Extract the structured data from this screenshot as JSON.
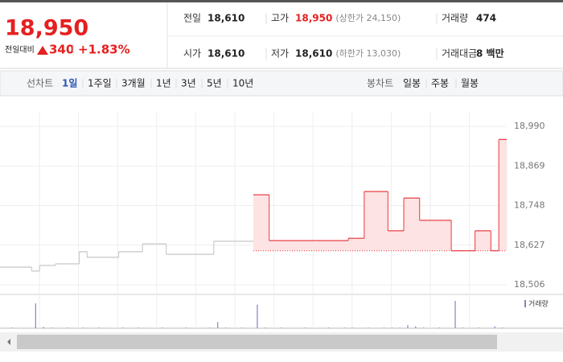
{
  "quote": {
    "price": "18,950",
    "change_label": "전일대비",
    "change": "340",
    "change_pct": "+1.83%"
  },
  "stats": [
    {
      "label": "전일",
      "value": "18,610"
    },
    {
      "label": "고가",
      "value": "18,950",
      "note": "(상한가 24,150)"
    },
    {
      "label": "거래량",
      "value": "474"
    },
    {
      "label": "시가",
      "value": "18,610"
    },
    {
      "label": "저가",
      "value": "18,610",
      "note": "(하한가 13,030)"
    },
    {
      "label": "거래대금",
      "value": "8 백만"
    }
  ],
  "tabs": {
    "line_label": "선차트",
    "line": [
      "1일",
      "1주일",
      "3개월",
      "1년",
      "3년",
      "5년",
      "10년"
    ],
    "candle_label": "봉차트",
    "candle": [
      "일봉",
      "주봉",
      "월봉"
    ]
  },
  "chart_data": {
    "type": "line",
    "ylim": [
      18479,
      19032
    ],
    "yticks": [
      {
        "value": 18506,
        "label": "18,506"
      },
      {
        "value": 18627,
        "label": "18,627"
      },
      {
        "value": 18748,
        "label": "18,748"
      },
      {
        "value": 18869,
        "label": "18,869"
      },
      {
        "value": 18990,
        "label": "18,990"
      }
    ],
    "grid": true,
    "baseline": 18610,
    "series": [
      {
        "color": "#c4c4c4",
        "values": [
          18560,
          18560,
          18560,
          18560,
          18548,
          18565,
          18565,
          18570,
          18570,
          18570,
          18607,
          18590,
          18590,
          18590,
          18590,
          18607,
          18607,
          18607,
          18631,
          18631,
          18631,
          18599,
          18599,
          18599,
          18599,
          18599,
          18599,
          18639,
          18639,
          18639,
          18639,
          18639,
          null,
          null,
          null,
          null,
          null,
          null,
          null,
          null,
          null,
          null,
          null,
          null,
          null,
          null,
          null,
          null,
          null,
          null,
          null,
          null,
          null,
          null,
          null,
          null,
          null,
          null,
          null,
          null,
          null,
          null,
          null,
          null
        ]
      },
      {
        "color": "#e8393f",
        "fill": "#fde3e3",
        "values": [
          null,
          null,
          null,
          null,
          null,
          null,
          null,
          null,
          null,
          null,
          null,
          null,
          null,
          null,
          null,
          null,
          null,
          null,
          null,
          null,
          null,
          null,
          null,
          null,
          null,
          null,
          null,
          null,
          null,
          null,
          null,
          null,
          18781,
          18781,
          18641,
          18641,
          18641,
          18641,
          18641,
          18641,
          18641,
          18641,
          18641,
          18641,
          18648,
          18648,
          18791,
          18791,
          18791,
          18671,
          18671,
          18771,
          18771,
          18703,
          18703,
          18703,
          18703,
          18610,
          18610,
          18610,
          18671,
          18671,
          18610,
          18950
        ]
      }
    ],
    "volume": {
      "label": "거래량",
      "color": "#8a80bf",
      "values": [
        0,
        1,
        0,
        0,
        40,
        2,
        1,
        0,
        1,
        0,
        1,
        0,
        1,
        0,
        0,
        1,
        0,
        1,
        0,
        0,
        1,
        0,
        0,
        1,
        0,
        0,
        1,
        10,
        1,
        0,
        1,
        0,
        38,
        1,
        0,
        1,
        0,
        0,
        1,
        0,
        0,
        1,
        0,
        1,
        1,
        0,
        1,
        0,
        1,
        1,
        1,
        5,
        3,
        1,
        0,
        1,
        0,
        44,
        1,
        0,
        1,
        0,
        3,
        1
      ]
    }
  }
}
